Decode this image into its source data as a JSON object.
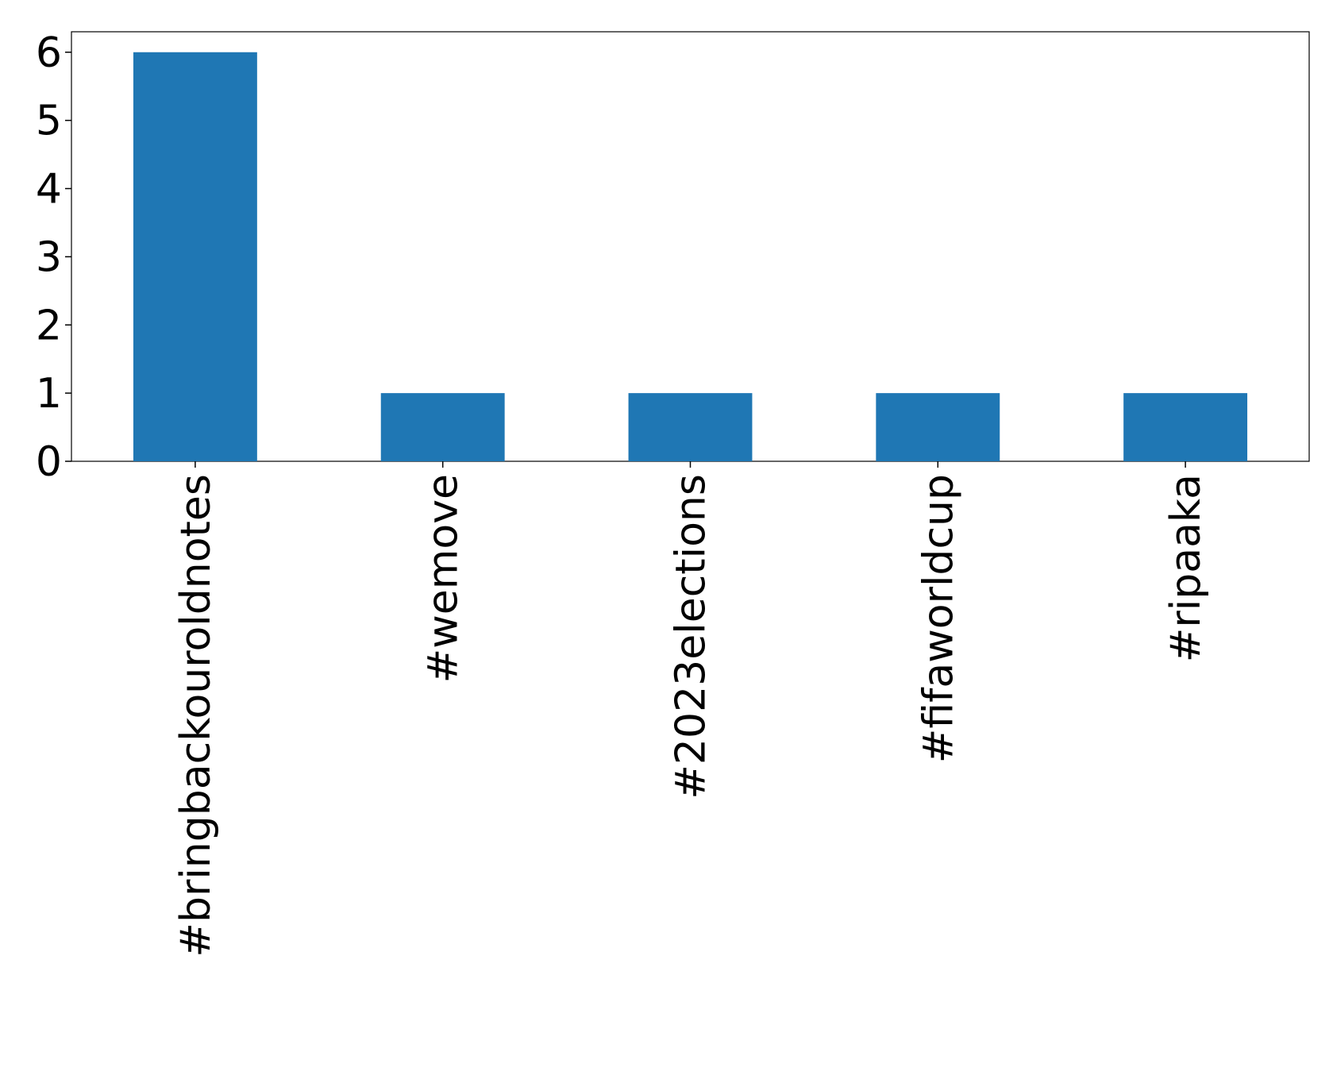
{
  "chart_data": {
    "type": "bar",
    "categories": [
      "#bringbackouroldnotes",
      "#wemove",
      "#2023elections",
      "#fifaworldcup",
      "#ripaaka"
    ],
    "values": [
      6,
      1,
      1,
      1,
      1
    ],
    "color": "#1f77b4",
    "ylim": [
      0,
      6.3
    ],
    "yticks": [
      0,
      1,
      2,
      3,
      4,
      5,
      6
    ],
    "grid": false
  }
}
